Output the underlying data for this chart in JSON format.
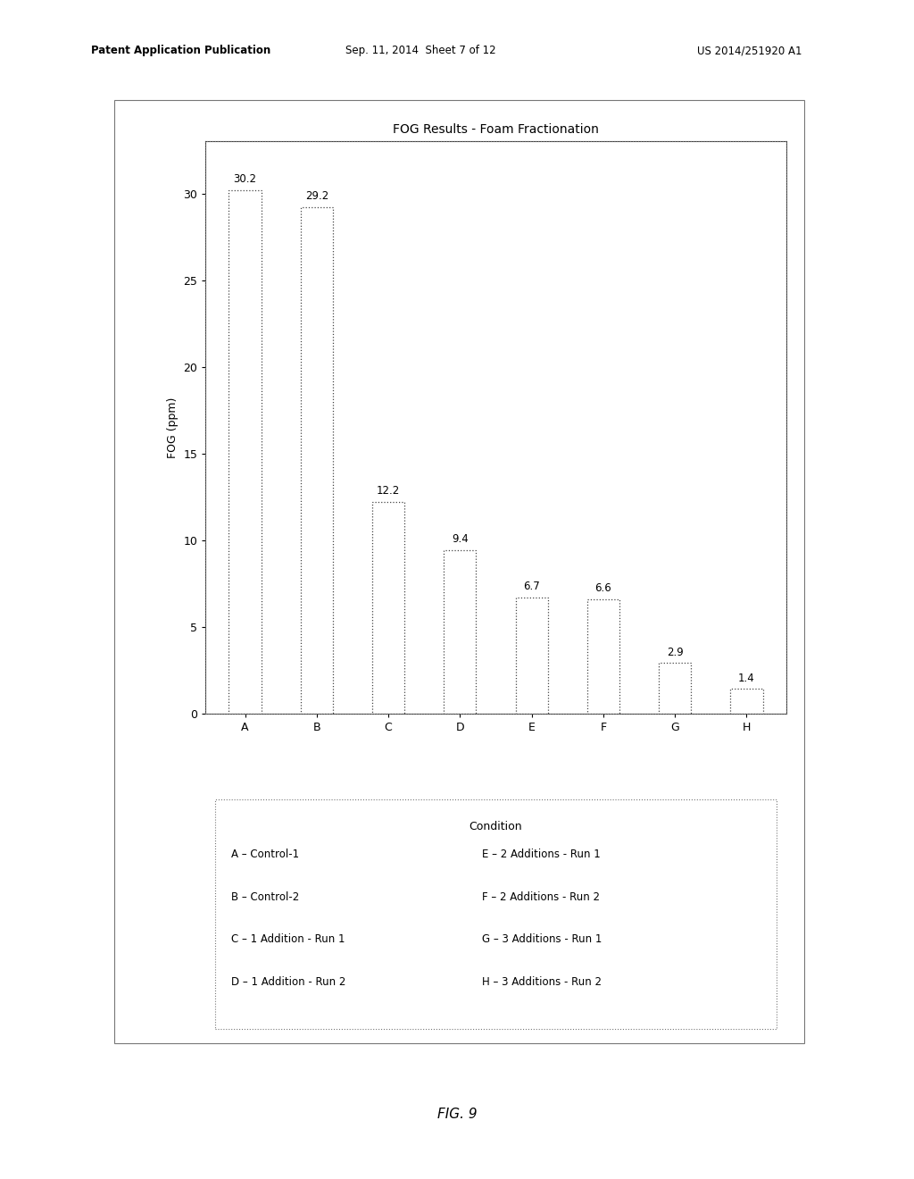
{
  "title": "FOG Results - Foam Fractionation",
  "categories": [
    "A",
    "B",
    "C",
    "D",
    "E",
    "F",
    "G",
    "H"
  ],
  "values": [
    30.2,
    29.2,
    12.2,
    9.4,
    6.7,
    6.6,
    2.9,
    1.4
  ],
  "ylabel": "FOG (ppm)",
  "ylim": [
    0,
    33
  ],
  "yticks": [
    0,
    5,
    10,
    15,
    20,
    25,
    30
  ],
  "bar_color": "white",
  "bar_edgecolor": "#444444",
  "bar_linewidth": 1.0,
  "background_color": "white",
  "legend_title": "Condition",
  "legend_items_left": [
    "A – Control-1",
    "B – Control-2",
    "C – 1 Addition - Run 1",
    "D – 1 Addition - Run 2"
  ],
  "legend_items_right": [
    "E – 2 Additions - Run 1",
    "F – 2 Additions - Run 2",
    "G – 3 Additions - Run 1",
    "H – 3 Additions - Run 2"
  ],
  "header_left": "Patent Application Publication",
  "header_mid": "Sep. 11, 2014  Sheet 7 of 12",
  "header_right": "US 2014/251920 A1",
  "figure_label": "FIG. 9",
  "title_fontsize": 10,
  "axis_label_fontsize": 9,
  "tick_fontsize": 9,
  "value_label_fontsize": 8.5,
  "legend_fontsize": 8.5,
  "bar_width": 0.45
}
